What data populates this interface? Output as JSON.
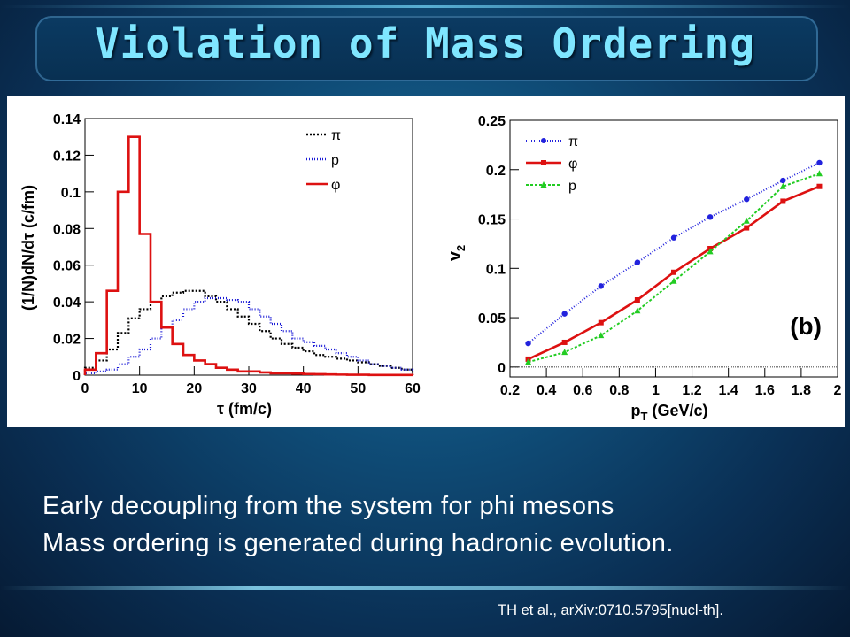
{
  "slide": {
    "title": "Violation of Mass Ordering",
    "body_lines": [
      "Early decoupling from the system for phi mesons",
      "Mass ordering is generated during hadronic evolution."
    ],
    "citation": "TH et al., arXiv:0710.5795[nucl-th]."
  },
  "chart_data": [
    {
      "type": "line",
      "style": "step histogram",
      "xlabel": "τ (fm/c)",
      "ylabel": "(1/N)dN/dτ (c/fm)",
      "xlim": [
        0,
        60
      ],
      "ylim": [
        0,
        0.14
      ],
      "xticks": [
        0,
        10,
        20,
        30,
        40,
        50,
        60
      ],
      "xtick_labels": [
        "0",
        "10",
        "20",
        "30",
        "40",
        "50",
        "60"
      ],
      "yticks": [
        0,
        0.02,
        0.04,
        0.06,
        0.08,
        0.1,
        0.12,
        0.14
      ],
      "ytick_labels": [
        "0",
        "0.02",
        "0.04",
        "0.06",
        "0.08",
        "0.1",
        "0.12",
        "0.14"
      ],
      "bin_width": 2,
      "bin_edges_start": 0,
      "legend_position": "top-right",
      "series": [
        {
          "name": "π",
          "color": "#000000",
          "dash": "2,2",
          "values": [
            0.004,
            0.008,
            0.014,
            0.023,
            0.031,
            0.036,
            0.04,
            0.043,
            0.045,
            0.046,
            0.046,
            0.043,
            0.04,
            0.036,
            0.032,
            0.028,
            0.024,
            0.02,
            0.017,
            0.015,
            0.013,
            0.011,
            0.01,
            0.009,
            0.008,
            0.007,
            0.006,
            0.005,
            0.004,
            0.003
          ]
        },
        {
          "name": "p",
          "color": "#1a1ad6",
          "dash": "1,2",
          "values": [
            0.001,
            0.002,
            0.003,
            0.006,
            0.01,
            0.014,
            0.02,
            0.026,
            0.03,
            0.036,
            0.04,
            0.042,
            0.042,
            0.041,
            0.04,
            0.036,
            0.032,
            0.028,
            0.024,
            0.02,
            0.018,
            0.016,
            0.014,
            0.012,
            0.01,
            0.008,
            0.006,
            0.005,
            0.004,
            0.003
          ]
        },
        {
          "name": "φ",
          "color": "#dd1111",
          "dash": "",
          "values": [
            0.003,
            0.012,
            0.046,
            0.1,
            0.13,
            0.077,
            0.04,
            0.026,
            0.017,
            0.011,
            0.008,
            0.006,
            0.004,
            0.003,
            0.002,
            0.002,
            0.0015,
            0.001,
            0.001,
            0.0008,
            0.0006,
            0.0005,
            0.0004,
            0.0003,
            0.0002,
            0.0002,
            0.0001,
            0.0001,
            0.0001,
            0.0001
          ]
        }
      ]
    },
    {
      "type": "line",
      "xlabel": "p",
      "xlabel_sub": "T",
      "xlabel_unit": " (GeV/c)",
      "ylabel": "v",
      "ylabel_sub": "2",
      "annotation": "(b)",
      "xlim": [
        0.2,
        2.0
      ],
      "ylim": [
        -0.01,
        0.25
      ],
      "xticks": [
        0.2,
        0.4,
        0.6,
        0.8,
        1.0,
        1.2,
        1.4,
        1.6,
        1.8,
        2.0
      ],
      "xtick_labels": [
        "0.2",
        "0.4",
        "0.6",
        "0.8",
        "1",
        "1.2",
        "1.4",
        "1.6",
        "1.8",
        "2"
      ],
      "yticks": [
        0,
        0.05,
        0.1,
        0.15,
        0.2,
        0.25
      ],
      "ytick_labels": [
        "0",
        "0.05",
        "0.1",
        "0.15",
        "0.2",
        "0.25"
      ],
      "legend_position": "top-left",
      "x": [
        0.3,
        0.5,
        0.7,
        0.9,
        1.1,
        1.3,
        1.5,
        1.7,
        1.9
      ],
      "series": [
        {
          "name": "π",
          "color": "#2222dd",
          "dash": "1,2",
          "marker": "circle",
          "values": [
            0.024,
            0.054,
            0.082,
            0.106,
            0.131,
            0.152,
            0.17,
            0.189,
            0.207
          ]
        },
        {
          "name": "φ",
          "color": "#dd1111",
          "dash": "",
          "marker": "square",
          "values": [
            0.008,
            0.025,
            0.045,
            0.068,
            0.096,
            0.12,
            0.141,
            0.168,
            0.183
          ]
        },
        {
          "name": "p",
          "color": "#22cc22",
          "dash": "3,2",
          "marker": "triangle",
          "values": [
            0.005,
            0.015,
            0.032,
            0.057,
            0.087,
            0.117,
            0.148,
            0.183,
            0.196
          ]
        }
      ]
    }
  ]
}
